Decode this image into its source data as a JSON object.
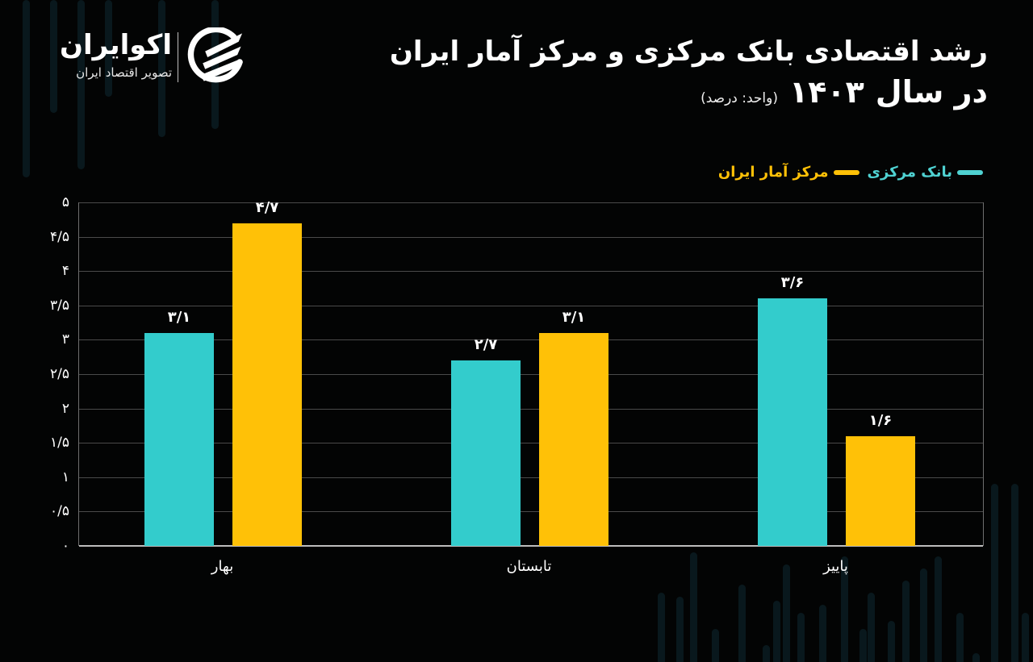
{
  "brand": {
    "name": "اکوایران",
    "tagline": "تصویر اقتصاد ایران"
  },
  "header": {
    "title_line1": "رشد اقتصادی بانک مرکزی و مرکز آمار ایران",
    "title_prefix": "در سال",
    "year": "۱۴۰۳",
    "unit": "(واحد: درصد)"
  },
  "legend": [
    {
      "label": "بانک مرکزی",
      "color": "#33cccc"
    },
    {
      "label": "مرکز آمار ایران",
      "color": "#ffc107"
    }
  ],
  "colors": {
    "background": "#030404",
    "central_bank": "#33cccc",
    "statistics_center": "#ffc107",
    "legend_central_bank_text": "#4fd2d2",
    "legend_statistics_text": "#ffc107"
  },
  "chart_data": {
    "type": "bar",
    "title": "رشد اقتصادی بانک مرکزی و مرکز آمار ایران در سال ۱۴۰۳",
    "subtitle": "(واحد: درصد)",
    "xlabel": "",
    "ylabel": "",
    "ylim": [
      0,
      5
    ],
    "yticks": [
      0,
      0.5,
      1,
      1.5,
      2,
      2.5,
      3,
      3.5,
      4,
      4.5,
      5
    ],
    "ytick_labels": [
      "۰",
      "۰/۵",
      "۱",
      "۱/۵",
      "۲",
      "۲/۵",
      "۳",
      "۳/۵",
      "۴",
      "۴/۵",
      "۵"
    ],
    "categories": [
      "بهار",
      "تابستان",
      "پاییز"
    ],
    "series": [
      {
        "name": "بانک مرکزی",
        "color": "#33cccc",
        "values": [
          3.1,
          2.7,
          3.6
        ],
        "labels": [
          "۳/۱",
          "۲/۷",
          "۳/۶"
        ]
      },
      {
        "name": "مرکز آمار ایران",
        "color": "#ffc107",
        "values": [
          4.7,
          3.1,
          1.6
        ],
        "labels": [
          "۴/۷",
          "۳/۱",
          "۱/۶"
        ]
      }
    ],
    "grid": true,
    "legend_position": "top-right"
  }
}
